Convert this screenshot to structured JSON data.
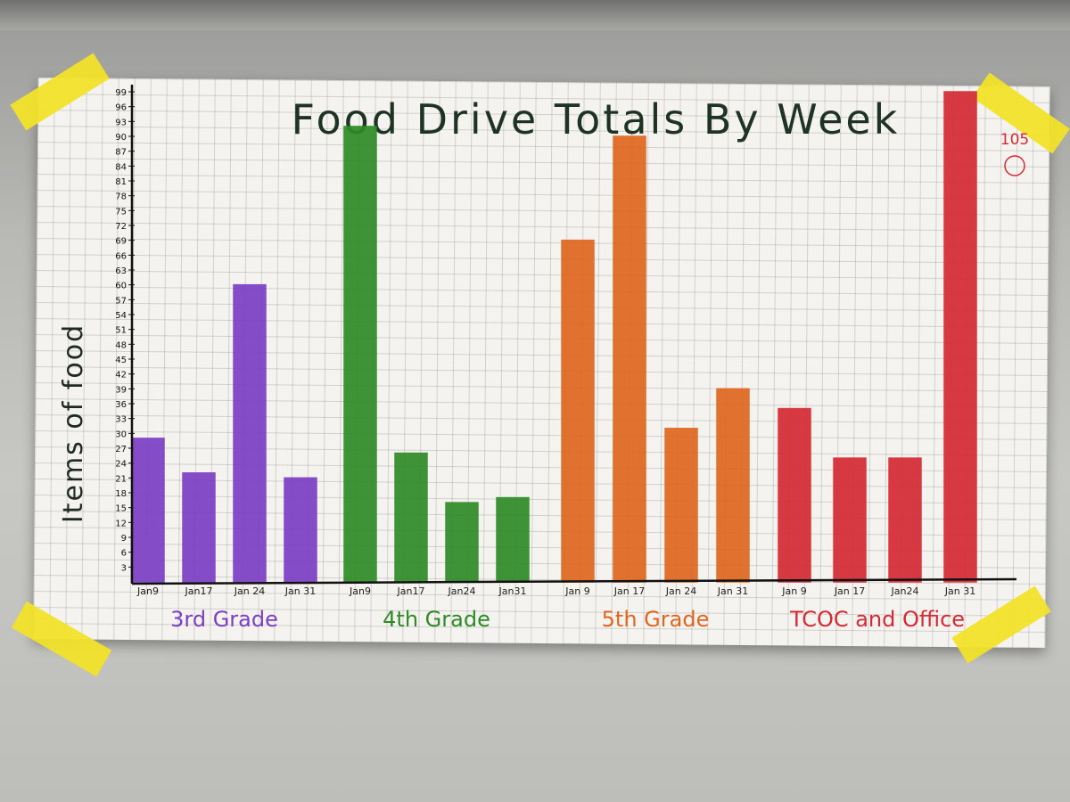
{
  "chart_data": {
    "type": "bar",
    "title": "Food Drive Totals By Week",
    "ylabel": "Items of food",
    "ylim": [
      0,
      99
    ],
    "yticks": [
      3,
      6,
      9,
      12,
      15,
      18,
      21,
      24,
      27,
      30,
      33,
      36,
      39,
      42,
      45,
      48,
      51,
      54,
      57,
      60,
      63,
      66,
      69,
      72,
      75,
      78,
      81,
      84,
      87,
      90,
      93,
      96,
      99
    ],
    "grid": true,
    "groups": [
      {
        "name": "3rd Grade",
        "color": "#7b3fc4",
        "categories": [
          "Jan9",
          "Jan17",
          "Jan 24",
          "Jan 31"
        ],
        "values": [
          29,
          22,
          60,
          21
        ]
      },
      {
        "name": "4th Grade",
        "color": "#2e8b26",
        "categories": [
          "Jan9",
          "Jan17",
          "Jan24",
          "Jan31"
        ],
        "values": [
          92,
          26,
          16,
          17
        ]
      },
      {
        "name": "5th Grade",
        "color": "#e0661f",
        "categories": [
          "Jan 9",
          "Jan 17",
          "Jan 24",
          "Jan 31"
        ],
        "values": [
          69,
          90,
          31,
          39
        ]
      },
      {
        "name": "TCOC and Office",
        "color": "#d42a33",
        "categories": [
          "Jan 9",
          "Jan 17",
          "Jan24",
          "Jan 31"
        ],
        "values": [
          35,
          25,
          25,
          99
        ]
      }
    ],
    "annotations": [
      {
        "text": "105",
        "color": "#d42a33"
      }
    ]
  }
}
